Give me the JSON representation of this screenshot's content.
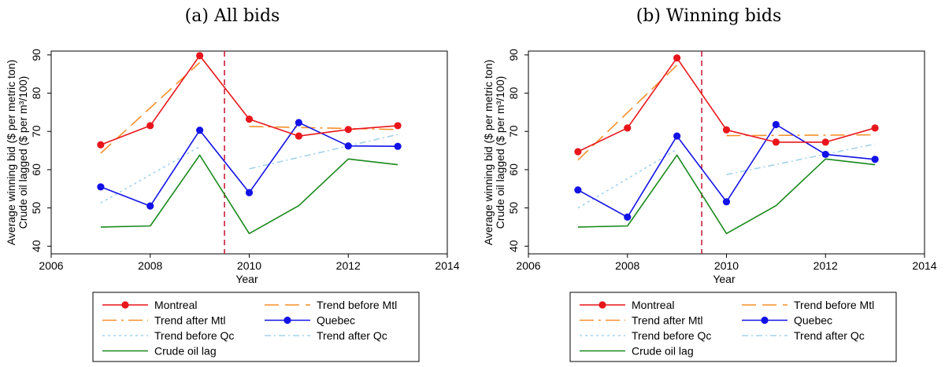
{
  "chart_data": [
    {
      "type": "line",
      "title": "(a) All bids",
      "xlabel": "Year",
      "ylabel_line1": "Average winning bid ($ per metric ton)",
      "ylabel_line2": "Crude oil lagged ($ per m³/100)",
      "xlim": [
        2006,
        2014
      ],
      "ylim": [
        38,
        91
      ],
      "xticks": [
        "2006",
        "2008",
        "2010",
        "2012",
        "2014"
      ],
      "yticks": [
        "40",
        "50",
        "60",
        "70",
        "80",
        "90"
      ],
      "cutoff_x": 2009.5,
      "series": [
        {
          "name": "Montreal",
          "color": "#e8161b",
          "style": "solid",
          "marker": true,
          "x": [
            2007,
            2008,
            2009,
            2010,
            2011,
            2012,
            2013
          ],
          "y": [
            66.5,
            71.5,
            89.8,
            73.2,
            68.8,
            70.5,
            71.5
          ]
        },
        {
          "name": "Trend before Mtl",
          "color": "#f5902a",
          "style": "longdash",
          "marker": false,
          "x": [
            2007,
            2009
          ],
          "y": [
            64.3,
            88.0
          ]
        },
        {
          "name": "Trend after Mtl",
          "color": "#f5902a",
          "style": "dashdot",
          "marker": false,
          "x": [
            2010,
            2013
          ],
          "y": [
            71.3,
            70.5
          ]
        },
        {
          "name": "Quebec",
          "color": "#1212e6",
          "style": "solid",
          "marker": true,
          "x": [
            2007,
            2008,
            2009,
            2010,
            2011,
            2012,
            2013
          ],
          "y": [
            55.5,
            50.5,
            70.3,
            54.0,
            72.3,
            66.2,
            66.1
          ]
        },
        {
          "name": "Trend before Qc",
          "color": "#a3d3ea",
          "style": "dotted",
          "marker": false,
          "x": [
            2007,
            2009
          ],
          "y": [
            51.3,
            66.0
          ]
        },
        {
          "name": "Trend after Qc",
          "color": "#a3d3ea",
          "style": "dashdotted",
          "marker": false,
          "x": [
            2010,
            2013
          ],
          "y": [
            60.2,
            69.2
          ]
        },
        {
          "name": "Crude oil lag",
          "color": "#18891b",
          "style": "solid",
          "marker": false,
          "x": [
            2007,
            2008,
            2009,
            2010,
            2011,
            2012,
            2013
          ],
          "y": [
            45.0,
            45.3,
            63.8,
            43.3,
            50.6,
            62.8,
            61.3
          ]
        }
      ]
    },
    {
      "type": "line",
      "title": "(b) Winning bids",
      "xlabel": "Year",
      "ylabel_line1": "Average winning bid ($ per metric ton)",
      "ylabel_line2": "Crude oil lagged ($ per m³/100)",
      "xlim": [
        2006,
        2014
      ],
      "ylim": [
        38,
        91
      ],
      "xticks": [
        "2006",
        "2008",
        "2010",
        "2012",
        "2014"
      ],
      "yticks": [
        "40",
        "50",
        "60",
        "70",
        "80",
        "90"
      ],
      "cutoff_x": 2009.5,
      "series": [
        {
          "name": "Montreal",
          "color": "#e8161b",
          "style": "solid",
          "marker": true,
          "x": [
            2007,
            2008,
            2009,
            2010,
            2011,
            2012,
            2013
          ],
          "y": [
            64.7,
            70.9,
            89.2,
            70.4,
            67.2,
            67.2,
            70.9
          ]
        },
        {
          "name": "Trend before Mtl",
          "color": "#f5902a",
          "style": "longdash",
          "marker": false,
          "x": [
            2007,
            2009
          ],
          "y": [
            62.5,
            87.3
          ]
        },
        {
          "name": "Trend after Mtl",
          "color": "#f5902a",
          "style": "dashdot",
          "marker": false,
          "x": [
            2010,
            2013
          ],
          "y": [
            68.9,
            69.1
          ]
        },
        {
          "name": "Quebec",
          "color": "#1212e6",
          "style": "solid",
          "marker": true,
          "x": [
            2007,
            2008,
            2009,
            2010,
            2011,
            2012,
            2013
          ],
          "y": [
            54.7,
            47.6,
            68.8,
            51.6,
            71.8,
            64.0,
            62.7
          ]
        },
        {
          "name": "Trend before Qc",
          "color": "#a3d3ea",
          "style": "dotted",
          "marker": false,
          "x": [
            2007,
            2009
          ],
          "y": [
            50.0,
            65.3
          ]
        },
        {
          "name": "Trend after Qc",
          "color": "#a3d3ea",
          "style": "dashdotted",
          "marker": false,
          "x": [
            2010,
            2013
          ],
          "y": [
            58.7,
            66.7
          ]
        },
        {
          "name": "Crude oil lag",
          "color": "#18891b",
          "style": "solid",
          "marker": false,
          "x": [
            2007,
            2008,
            2009,
            2010,
            2011,
            2012,
            2013
          ],
          "y": [
            45.0,
            45.3,
            63.8,
            43.3,
            50.6,
            62.8,
            61.3
          ]
        }
      ]
    }
  ],
  "colors": {
    "cutoff_line": "#c8102e",
    "axis": "#000000"
  }
}
